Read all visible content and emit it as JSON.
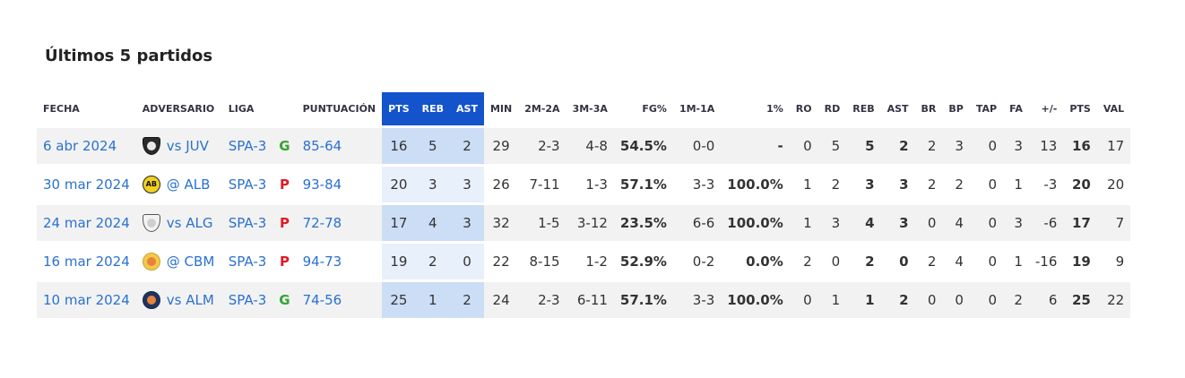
{
  "page": {
    "title": "Últimos 5 partidos"
  },
  "colors": {
    "link": "#2a71d0",
    "win_green": "#33a532",
    "loss_red": "#e01b24",
    "highlight_header_bg": "#1353cc",
    "highlight_cell_odd": "#ccddf6",
    "highlight_cell_even": "#e8f0fb",
    "row_odd_bg": "#f2f2f2",
    "row_even_bg": "#ffffff"
  },
  "table": {
    "headers": {
      "fecha": "FECHA",
      "adversario": "ADVERSARIO",
      "liga": "LIGA",
      "result": "",
      "puntuacion": "PUNTUACIÓN",
      "pts": "PTS",
      "reb": "REB",
      "ast": "AST",
      "min": "MIN",
      "m2": "2M-2A",
      "m3": "3M-3A",
      "fg": "FG%",
      "m1": "1M-1A",
      "pct1": "1%",
      "ro": "RO",
      "rd": "RD",
      "reb2": "REB",
      "ast2": "AST",
      "br": "BR",
      "bp": "BP",
      "tap": "TAP",
      "fa": "FA",
      "pm": "+/-",
      "pts2": "PTS",
      "val": "VAL"
    },
    "rows": [
      {
        "fecha": "6 abr 2024",
        "opponent": "vs JUV",
        "liga": "SPA-3",
        "result": "G",
        "score": "85-64",
        "pts": "16",
        "reb": "5",
        "ast": "2",
        "min": "29",
        "m2": "2-3",
        "m3": "4-8",
        "fg": "54.5%",
        "m1": "0-0",
        "pct1": "-",
        "ro": "0",
        "rd": "5",
        "reb2": "5",
        "ast2": "2",
        "br": "2",
        "bp": "3",
        "tap": "0",
        "fa": "3",
        "pm": "13",
        "pts2": "16",
        "val": "17",
        "logo": {
          "name": "juv-crest",
          "shape": "shield",
          "bg": "#2b2b2b",
          "border": "#111111",
          "inner": "#e8e8e8",
          "label": ""
        }
      },
      {
        "fecha": "30 mar 2024",
        "opponent": "@ ALB",
        "liga": "SPA-3",
        "result": "P",
        "score": "93-84",
        "pts": "20",
        "reb": "3",
        "ast": "3",
        "min": "26",
        "m2": "7-11",
        "m3": "1-3",
        "fg": "57.1%",
        "m1": "3-3",
        "pct1": "100.0%",
        "ro": "1",
        "rd": "2",
        "reb2": "3",
        "ast2": "3",
        "br": "2",
        "bp": "2",
        "tap": "0",
        "fa": "1",
        "pm": "-3",
        "pts2": "20",
        "val": "20",
        "logo": {
          "name": "alb-crest",
          "shape": "circle",
          "bg": "#f0d020",
          "border": "#222222",
          "inner": "",
          "label": "AB",
          "labelColor": "#111111"
        }
      },
      {
        "fecha": "24 mar 2024",
        "opponent": "vs ALG",
        "liga": "SPA-3",
        "result": "P",
        "score": "72-78",
        "pts": "17",
        "reb": "4",
        "ast": "3",
        "min": "32",
        "m2": "1-5",
        "m3": "3-12",
        "fg": "23.5%",
        "m1": "6-6",
        "pct1": "100.0%",
        "ro": "1",
        "rd": "3",
        "reb2": "4",
        "ast2": "3",
        "br": "0",
        "bp": "4",
        "tap": "0",
        "fa": "3",
        "pm": "-6",
        "pts2": "17",
        "val": "7",
        "logo": {
          "name": "alg-crest",
          "shape": "shield",
          "bg": "#f3f3f3",
          "border": "#555555",
          "inner": "#cfcfcf",
          "label": ""
        }
      },
      {
        "fecha": "16 mar 2024",
        "opponent": "@ CBM",
        "liga": "SPA-3",
        "result": "P",
        "score": "94-73",
        "pts": "19",
        "reb": "2",
        "ast": "0",
        "min": "22",
        "m2": "8-15",
        "m3": "1-2",
        "fg": "52.9%",
        "m1": "0-2",
        "pct1": "0.0%",
        "ro": "2",
        "rd": "0",
        "reb2": "2",
        "ast2": "0",
        "br": "2",
        "bp": "4",
        "tap": "0",
        "fa": "1",
        "pm": "-16",
        "pts2": "19",
        "val": "9",
        "logo": {
          "name": "cbm-crest",
          "shape": "circle",
          "bg": "#f2c94c",
          "border": "#caa52e",
          "inner": "#e8833a",
          "label": ""
        }
      },
      {
        "fecha": "10 mar 2024",
        "opponent": "vs ALM",
        "liga": "SPA-3",
        "result": "G",
        "score": "74-56",
        "pts": "25",
        "reb": "1",
        "ast": "2",
        "min": "24",
        "m2": "2-3",
        "m3": "6-11",
        "fg": "57.1%",
        "m1": "3-3",
        "pct1": "100.0%",
        "ro": "0",
        "rd": "1",
        "reb2": "1",
        "ast2": "2",
        "br": "0",
        "bp": "0",
        "tap": "0",
        "fa": "2",
        "pm": "6",
        "pts2": "25",
        "val": "22",
        "logo": {
          "name": "alm-crest",
          "shape": "circle",
          "bg": "#1d3461",
          "border": "#16294d",
          "inner": "#e8833a",
          "label": ""
        }
      }
    ]
  }
}
